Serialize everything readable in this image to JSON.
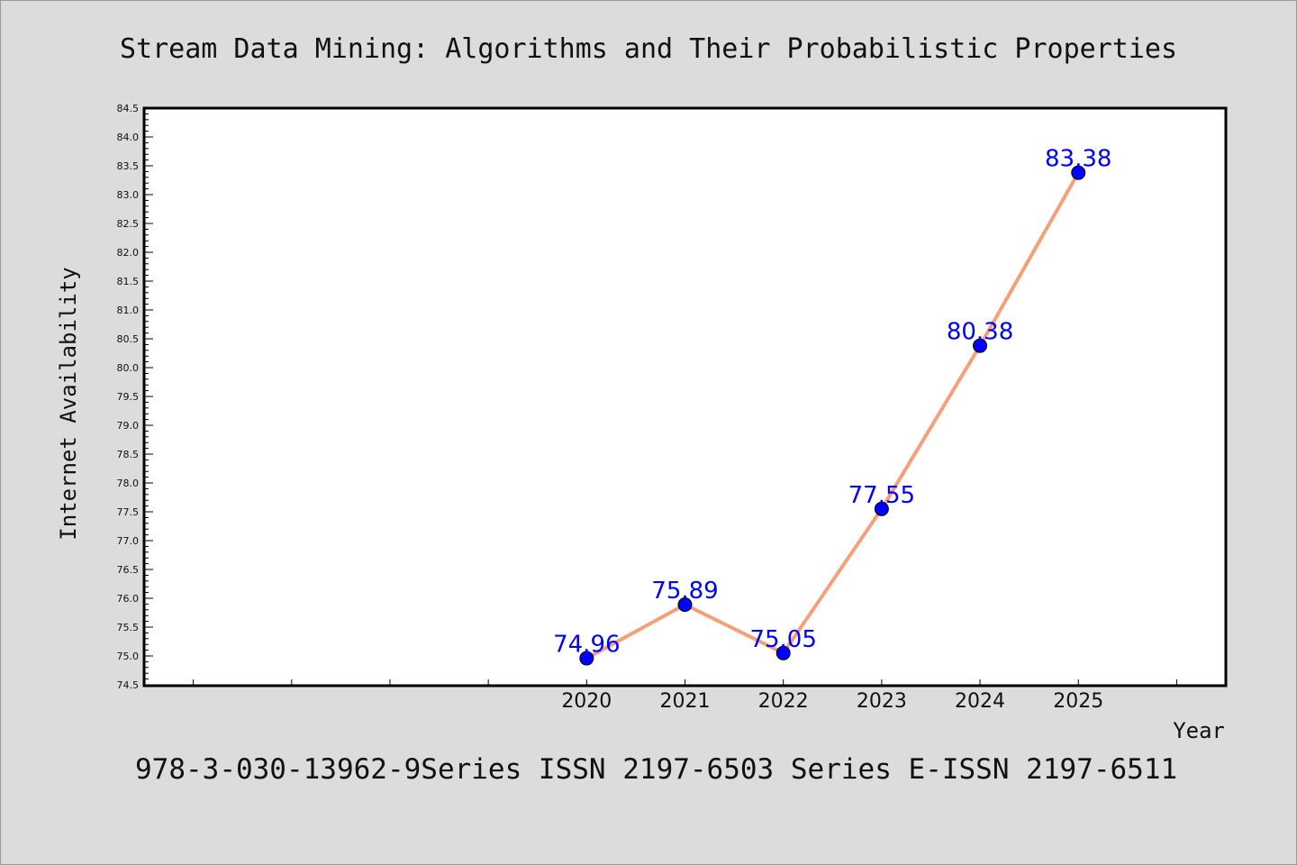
{
  "chart_data": {
    "type": "line",
    "title": "Stream Data Mining: Algorithms and Their Probabilistic Properties",
    "xlabel": "Year",
    "ylabel": "Internet Availability",
    "x": [
      2020,
      2021,
      2022,
      2023,
      2024,
      2025
    ],
    "series": [
      {
        "values": [
          74.96,
          75.89,
          75.05,
          77.55,
          80.38,
          83.38
        ],
        "data_labels": [
          "74.96",
          "75.89",
          "75.05",
          "77.55",
          "80.38",
          "83.38"
        ],
        "line_color": "#f4a07a",
        "marker_color": "#0000ff"
      }
    ],
    "xlim": [
      2015.5,
      2026.5
    ],
    "ylim": [
      74.5,
      84.5
    ],
    "yticks": [
      "74.5",
      "75.0",
      "75.5",
      "76.0",
      "76.5",
      "77.0",
      "77.5",
      "78.0",
      "78.5",
      "79.0",
      "79.5",
      "80.0",
      "80.5",
      "81.0",
      "81.5",
      "82.0",
      "82.5",
      "83.0",
      "83.5",
      "84.0",
      "84.5"
    ],
    "xticks_labeled": [
      "2020",
      "2021",
      "2022",
      "2023",
      "2024",
      "2025"
    ],
    "grid": false,
    "legend": "none"
  },
  "footer": "978-3-030-13962-9Series ISSN 2197-6503 Series E-ISSN 2197-6511",
  "colors": {
    "background": "#dcdcdc",
    "plot_area": "#ffffff",
    "axis": "#000000",
    "data_label": "#0000ff"
  }
}
